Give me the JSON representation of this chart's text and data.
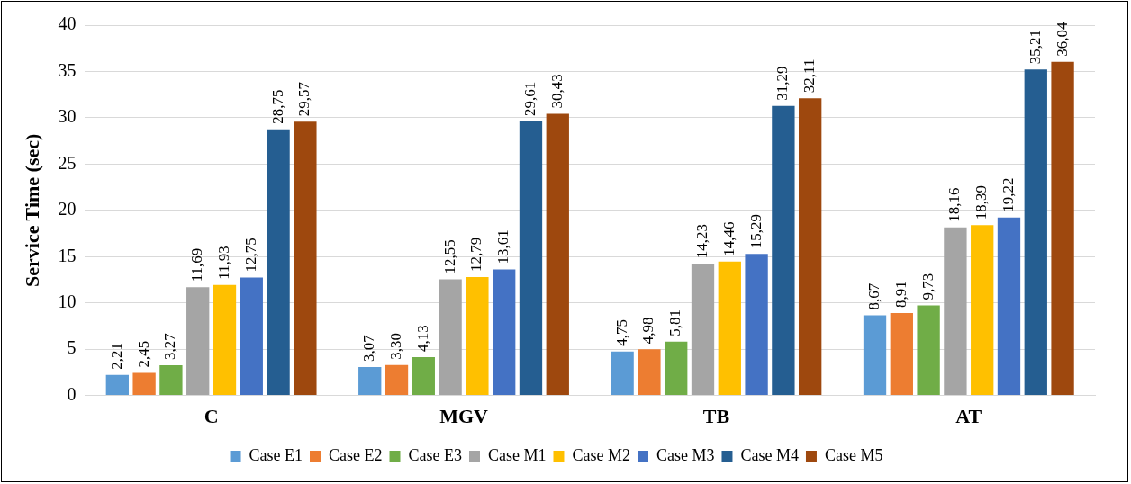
{
  "chart_data": {
    "type": "bar",
    "ylabel": "Service Time (sec)",
    "categories": [
      "C",
      "MGV",
      "TB",
      "AT"
    ],
    "ylim": [
      0,
      40
    ],
    "yticks": [
      0,
      5,
      10,
      15,
      20,
      25,
      30,
      35,
      40
    ],
    "grid": "y",
    "legend": "bottom",
    "series": [
      {
        "name": "Case E1",
        "color": "#5b9bd5",
        "values": [
          2.21,
          3.07,
          4.75,
          8.67
        ],
        "value_labels": [
          "2,21",
          "3,07",
          "4,75",
          "8,67"
        ]
      },
      {
        "name": "Case E2",
        "color": "#ed7d31",
        "values": [
          2.45,
          3.3,
          4.98,
          8.91
        ],
        "value_labels": [
          "2,45",
          "3,30",
          "4,98",
          "8,91"
        ]
      },
      {
        "name": "Case E3",
        "color": "#70ad47",
        "values": [
          3.27,
          4.13,
          5.81,
          9.73
        ],
        "value_labels": [
          "3,27",
          "4,13",
          "5,81",
          "9,73"
        ]
      },
      {
        "name": "Case M1",
        "color": "#a5a5a5",
        "values": [
          11.69,
          12.55,
          14.23,
          18.16
        ],
        "value_labels": [
          "11,69",
          "12,55",
          "14,23",
          "18,16"
        ]
      },
      {
        "name": "Case M2",
        "color": "#ffc000",
        "values": [
          11.93,
          12.79,
          14.46,
          18.39
        ],
        "value_labels": [
          "11,93",
          "12,79",
          "14,46",
          "18,39"
        ]
      },
      {
        "name": "Case M3",
        "color": "#4472c4",
        "values": [
          12.75,
          13.61,
          15.29,
          19.22
        ],
        "value_labels": [
          "12,75",
          "13,61",
          "15,29",
          "19,22"
        ]
      },
      {
        "name": "Case M4",
        "color": "#255e91",
        "values": [
          28.75,
          29.61,
          31.29,
          35.21
        ],
        "value_labels": [
          "28,75",
          "29,61",
          "31,29",
          "35,21"
        ]
      },
      {
        "name": "Case M5",
        "color": "#9e480e",
        "values": [
          29.57,
          30.43,
          32.11,
          36.04
        ],
        "value_labels": [
          "29,57",
          "30,43",
          "32,11",
          "36,04"
        ]
      }
    ]
  }
}
